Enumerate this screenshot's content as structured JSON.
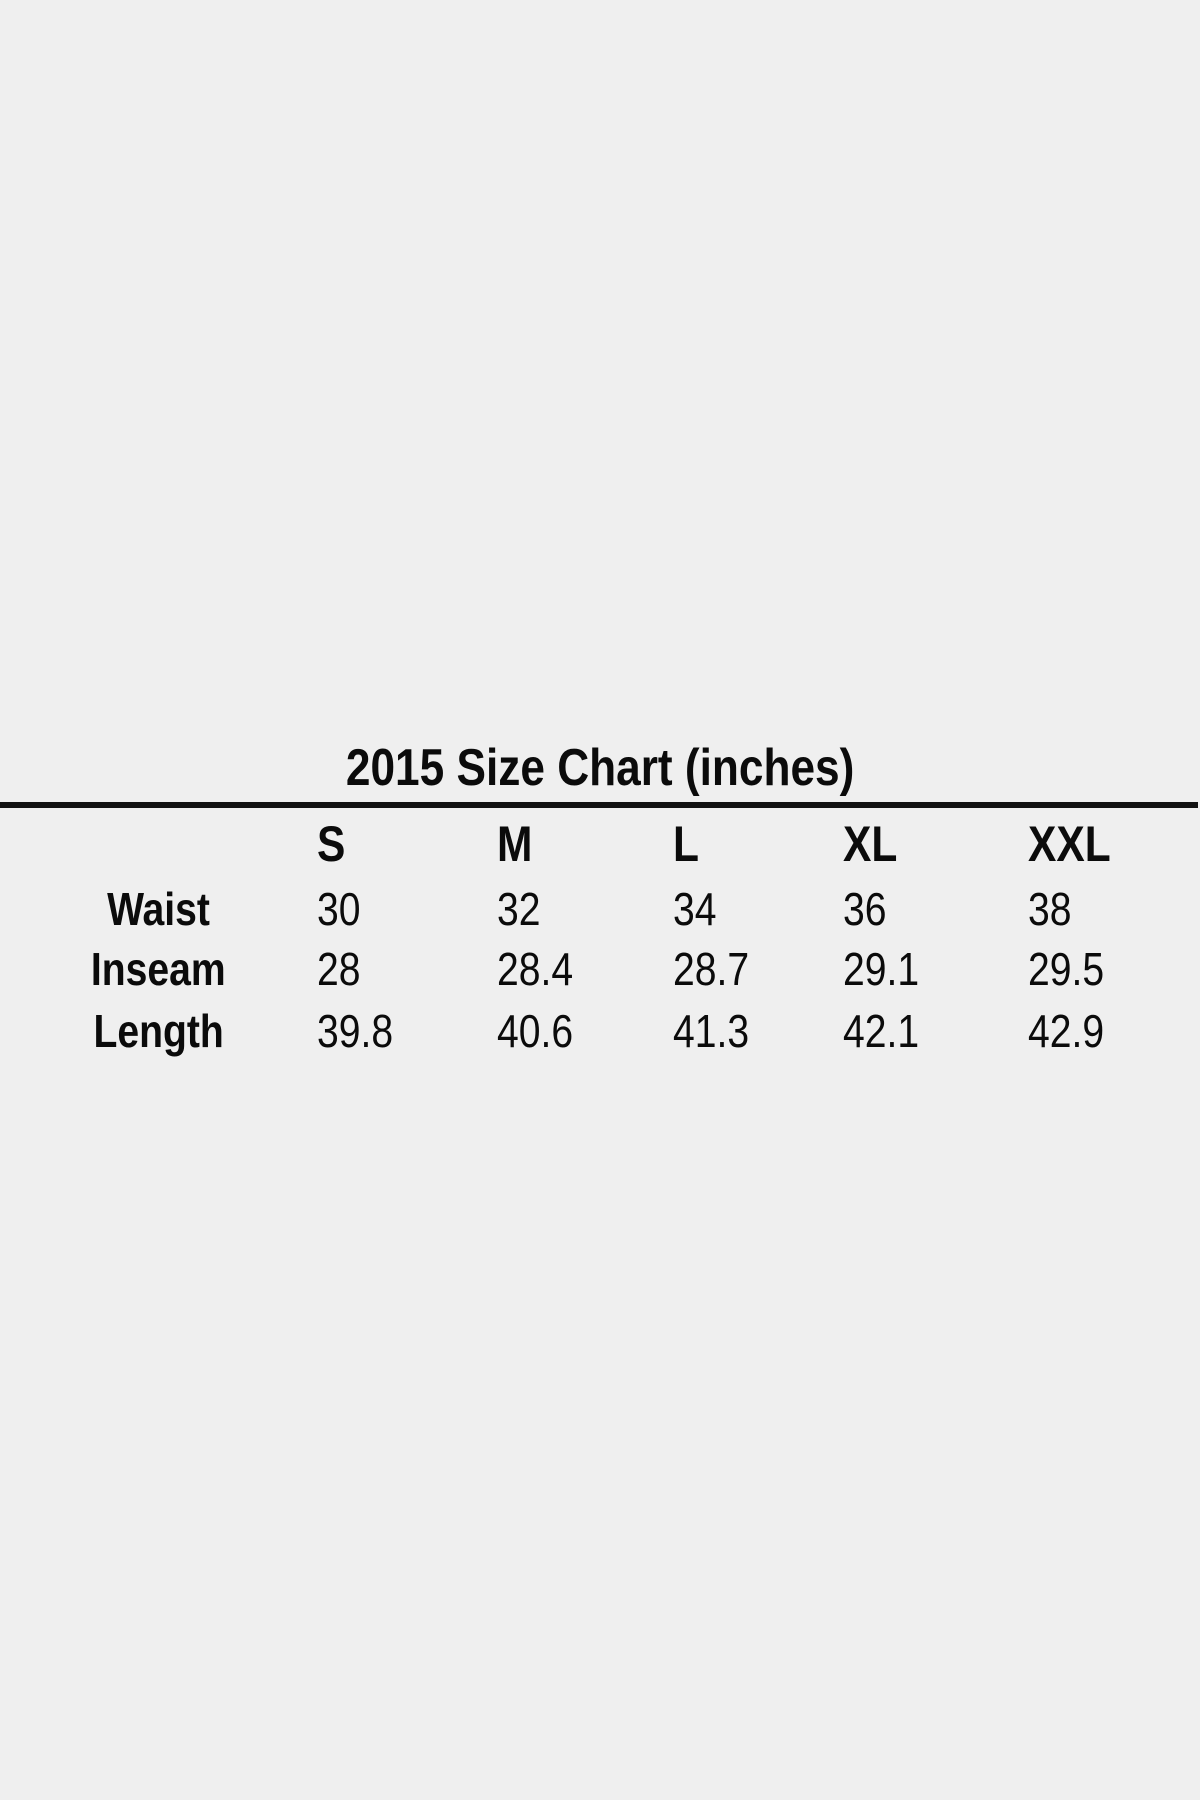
{
  "page": {
    "background_color": "#efefef",
    "text_color": "#0b0b0b",
    "divider_color": "#121212"
  },
  "size_chart": {
    "title": "2015 Size Chart (inches)",
    "columns": [
      "S",
      "M",
      "L",
      "XL",
      "XXL"
    ],
    "rows": [
      {
        "label": "Waist",
        "values": [
          "30",
          "32",
          "34",
          "36",
          "38"
        ]
      },
      {
        "label": "Inseam",
        "values": [
          "28",
          "28.4",
          "28.7",
          "29.1",
          "29.5"
        ]
      },
      {
        "label": "Length",
        "values": [
          "39.8",
          "40.6",
          "41.3",
          "42.1",
          "42.9"
        ]
      }
    ]
  }
}
